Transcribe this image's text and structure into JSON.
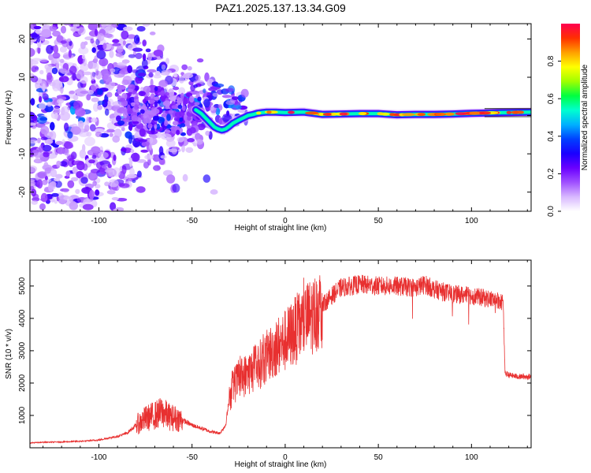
{
  "chart_data": [
    {
      "type": "heatmap",
      "title": "PAZ1.2025.137.13.34.G09",
      "xlabel": "Height of straight line (km)",
      "ylabel": "Frequency (Hz)",
      "xlim": [
        -137,
        132
      ],
      "ylim": [
        -25,
        24
      ],
      "xticks": [
        -100,
        -50,
        0,
        50,
        100
      ],
      "yticks": [
        -20,
        -10,
        0,
        10,
        20
      ],
      "colorbar": {
        "label": "Normalized spectral amplitude",
        "range": [
          0,
          1
        ],
        "ticks": [
          0.0,
          0.2,
          0.4,
          0.6,
          0.8
        ],
        "colors": [
          "#ffffff",
          "#d8b8ff",
          "#a050ff",
          "#6a00ff",
          "#1a00ff",
          "#0040ff",
          "#00b0ff",
          "#00ffd0",
          "#00ff40",
          "#a0ff00",
          "#ffff00",
          "#ffa000",
          "#ff3000",
          "#ff0050"
        ]
      },
      "ridge": {
        "x": [
          -48,
          -45,
          -42,
          -40,
          -38,
          -36,
          -34,
          -32,
          -30,
          -28,
          -25,
          -22,
          -20,
          -17,
          -15,
          -12,
          -10,
          -5,
          0,
          10,
          20,
          30,
          40,
          50,
          60,
          70,
          80,
          90,
          100,
          110,
          120,
          132
        ],
        "y": [
          1.5,
          0.5,
          -1.0,
          -2.0,
          -3.0,
          -3.5,
          -3.8,
          -3.5,
          -2.8,
          -2.0,
          -1.2,
          -0.5,
          0.0,
          0.3,
          0.6,
          0.8,
          0.9,
          0.9,
          0.8,
          0.9,
          0.3,
          0.4,
          0.5,
          0.5,
          0.2,
          0.3,
          0.3,
          0.4,
          0.6,
          0.7,
          0.8,
          0.9
        ]
      }
    },
    {
      "type": "line",
      "xlabel": "Height of straight line (km)",
      "ylabel": "SNR (10 * v/v)",
      "xlim": [
        -137,
        132
      ],
      "ylim": [
        0,
        5800
      ],
      "xticks": [
        -100,
        -50,
        0,
        50,
        100
      ],
      "yticks": [
        1000,
        2000,
        3000,
        4000,
        5000
      ],
      "color": "#e83030",
      "series": [
        {
          "x": [
            -137,
            -130,
            -120,
            -110,
            -100,
            -95,
            -90,
            -85,
            -80,
            -75,
            -70,
            -66,
            -62,
            -58,
            -55,
            -50,
            -45,
            -40,
            -35,
            -32,
            -30,
            -28,
            -25,
            -20,
            -15,
            -10,
            -5,
            0,
            5,
            10,
            15,
            20,
            25,
            30,
            40,
            50,
            60,
            70,
            75,
            80,
            90,
            100,
            105,
            110,
            115,
            117,
            118,
            120,
            125,
            132
          ],
          "y": [
            150,
            170,
            180,
            200,
            240,
            300,
            350,
            450,
            700,
            900,
            1000,
            1100,
            950,
            900,
            850,
            700,
            600,
            500,
            450,
            700,
            1500,
            1900,
            2100,
            2300,
            2500,
            2800,
            3100,
            3300,
            3600,
            3900,
            4100,
            4400,
            4700,
            4950,
            5050,
            5000,
            5000,
            4950,
            5050,
            4900,
            4750,
            4700,
            4650,
            4600,
            4550,
            4500,
            2300,
            2250,
            2200,
            2200
          ]
        }
      ]
    }
  ]
}
